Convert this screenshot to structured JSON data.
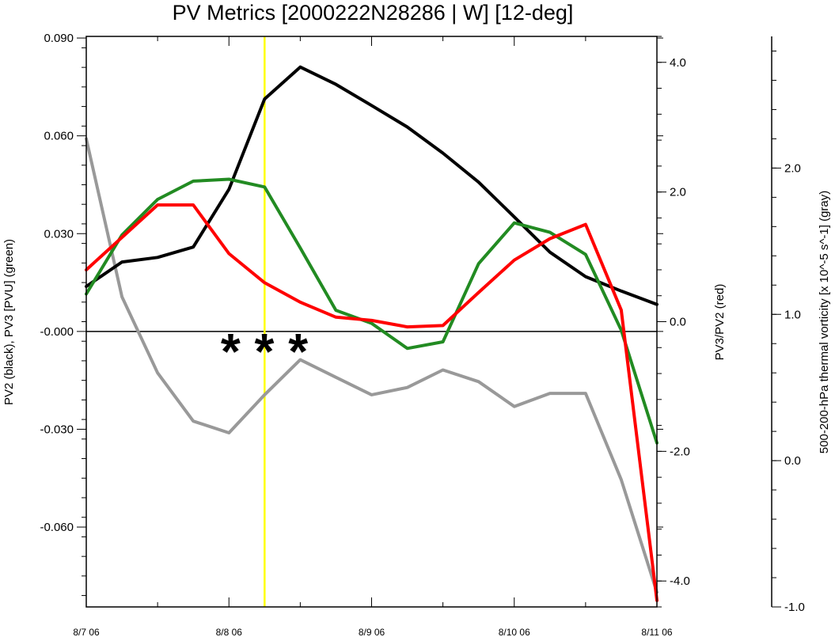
{
  "chart_data": {
    "type": "line",
    "title": "PV Metrics [2000222N28286 | W] [12-deg]",
    "x_tick_labels": [
      "8/7 06",
      "8/8 06",
      "8/9 06",
      "8/10 06",
      "8/11 06"
    ],
    "x_range": [
      0,
      16
    ],
    "x": [
      0,
      1,
      2,
      3,
      4,
      5,
      6,
      7,
      8,
      9,
      10,
      11,
      12,
      13,
      14,
      15,
      16
    ],
    "left_axis": {
      "label": "PV2 (black), PV3 [PVU] (green)",
      "range": [
        -0.0845,
        0.0905
      ],
      "ticks": [
        0.09,
        0.06,
        0.03,
        0.0,
        -0.03,
        -0.06
      ],
      "tick_labels": [
        "0.090",
        "0.060",
        "0.030",
        "-0.000",
        "-0.030",
        "-0.060"
      ]
    },
    "right_axis": {
      "label": "PV3/PV2 (red)",
      "range": [
        -4.4,
        4.4
      ],
      "ticks": [
        4.0,
        2.0,
        0.0,
        -2.0,
        -4.0
      ],
      "tick_labels": [
        "4.0",
        "2.0",
        "0.0",
        "-2.0",
        "-4.0"
      ]
    },
    "outer_axis": {
      "label": "500-200-hPa thermal vorticity [x 10^-5 s^-1] (gray)",
      "range": [
        -1.0,
        2.9
      ],
      "ticks": [
        2.0,
        1.0,
        0.0,
        -1.0
      ],
      "tick_labels": [
        "2.0",
        "1.0",
        "0.0",
        "-1.0"
      ]
    },
    "series": [
      {
        "name": "PV2",
        "axis": "left",
        "color": "#000000",
        "values": [
          0.0138,
          0.0213,
          0.0227,
          0.0259,
          0.0436,
          0.0713,
          0.0811,
          0.0758,
          0.0693,
          0.0627,
          0.0547,
          0.0458,
          0.0351,
          0.0243,
          0.0168,
          0.0124,
          0.0083
        ]
      },
      {
        "name": "PV3",
        "axis": "left",
        "color": "#228b22",
        "values": [
          0.0115,
          0.0296,
          0.0405,
          0.0461,
          0.0467,
          0.0443,
          0.0256,
          0.0065,
          0.0025,
          -0.0052,
          -0.0032,
          0.0208,
          0.0333,
          0.0304,
          0.0236,
          0.0004,
          -0.0342
        ]
      },
      {
        "name": "PV3/PV2",
        "axis": "right",
        "color": "#ff0000",
        "values": [
          0.8,
          1.3,
          1.8,
          1.8,
          1.05,
          0.6,
          0.3,
          0.07,
          0.02,
          -0.08,
          -0.06,
          0.45,
          0.95,
          1.28,
          1.5,
          0.18,
          -4.3
        ]
      },
      {
        "name": "thermal vorticity",
        "axis": "outer",
        "color": "#999999",
        "values": [
          2.2,
          1.12,
          0.6,
          0.27,
          0.19,
          0.45,
          0.69,
          0.57,
          0.45,
          0.5,
          0.62,
          0.54,
          0.37,
          0.46,
          0.46,
          -0.13,
          -0.9
        ]
      }
    ],
    "zero_line": 0.0,
    "vertical_marker": {
      "x": 5,
      "color": "#ffff00"
    },
    "annotation": {
      "text": "* * *",
      "x": 5,
      "y": 0.0
    }
  }
}
